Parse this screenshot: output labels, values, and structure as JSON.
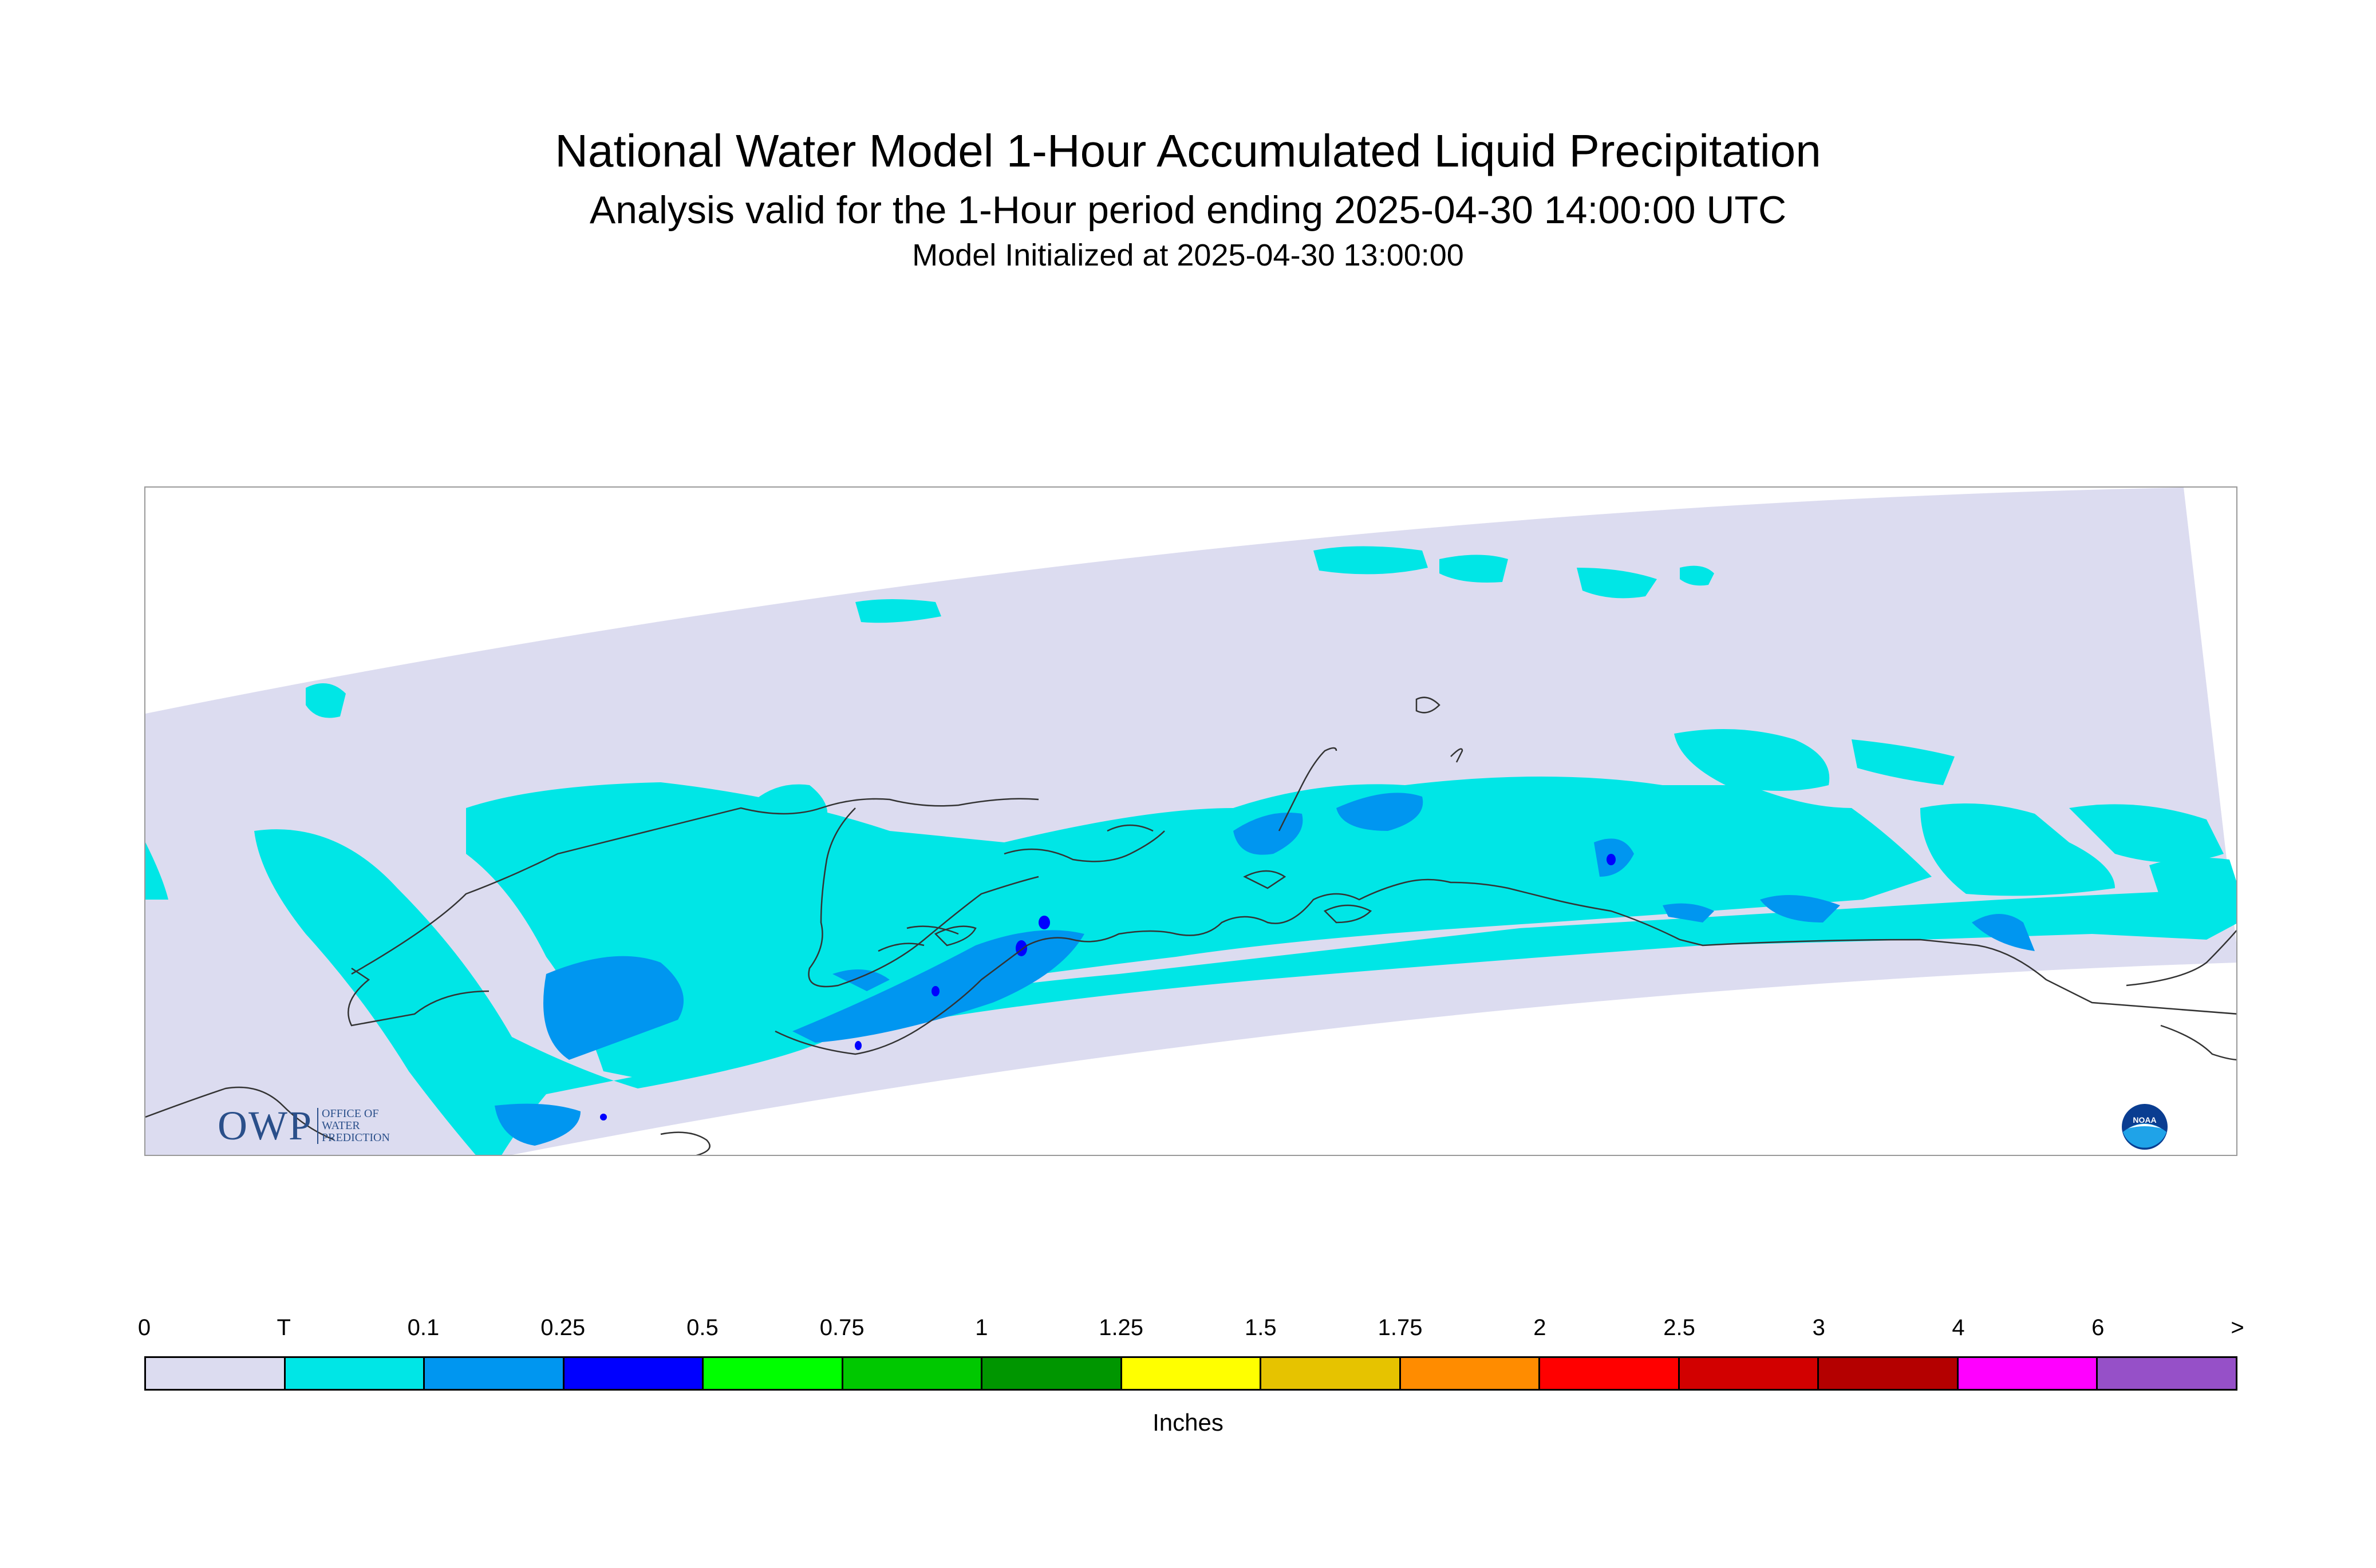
{
  "header": {
    "title": "National Water Model 1-Hour Accumulated Liquid Precipitation",
    "subtitle": "Analysis valid for the 1-Hour period ending 2025-04-30 14:00:00 UTC",
    "init_line": "Model Initialized at 2025-04-30 13:00:00"
  },
  "legend": {
    "units_label": "Inches",
    "ticks": [
      "0",
      "T",
      "0.1",
      "0.25",
      "0.5",
      "0.75",
      "1",
      "1.25",
      "1.5",
      "1.75",
      "2",
      "2.5",
      "3",
      "4",
      "6",
      ">"
    ],
    "colors": [
      "#dcdcf0",
      "#00e6e6",
      "#0096f0",
      "#0000ff",
      "#00ff00",
      "#00c800",
      "#009600",
      "#ffff00",
      "#e6c300",
      "#ff8c00",
      "#ff0000",
      "#d20000",
      "#b40000",
      "#ff00ff",
      "#9650c8"
    ]
  },
  "logos": {
    "owp_letters": "OWP",
    "owp_text": [
      "OFFICE OF",
      "WATER",
      "PREDICTION"
    ],
    "noaa_text": "NOAA"
  },
  "map": {
    "domain_color": "#dcdcf0",
    "trace_color": "#00e6e6",
    "light_color": "#0096f0",
    "moderate_color": "#0000ff",
    "coastline_color": "#333333"
  }
}
